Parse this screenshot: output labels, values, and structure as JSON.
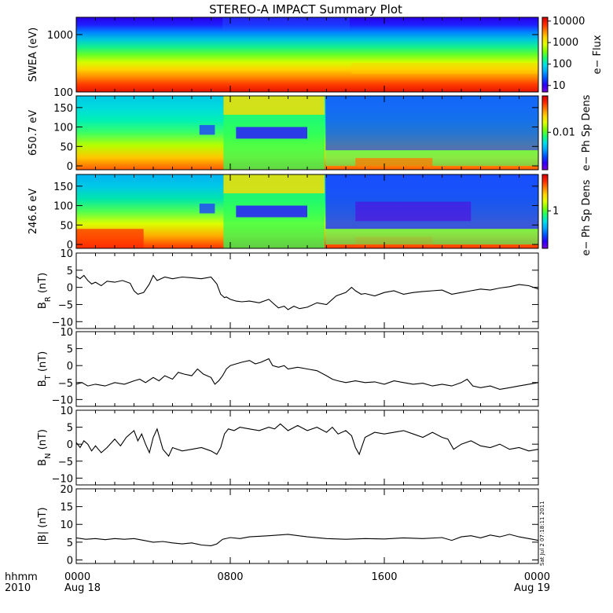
{
  "title": "STEREO-A IMPACT Summary Plot",
  "footer": {
    "row1": "hhmm",
    "row2": "2010",
    "ticks": [
      {
        "time": "0000",
        "date": "Aug 18"
      },
      {
        "time": "0800",
        "date": ""
      },
      {
        "time": "1600",
        "date": ""
      },
      {
        "time": "0000",
        "date": "Aug 19"
      }
    ]
  },
  "stamp": "Sat Jul  2 07:18:11 2011",
  "colors": {
    "line": "#000000",
    "spectrogram_low": "#1a00ff",
    "spectrogram_high": "#e31a00"
  },
  "chart_data": [
    {
      "type": "heatmap",
      "ylabel": "SWEA (eV)",
      "yscale": "log",
      "ylim": [
        100,
        2000
      ],
      "yticks": [
        {
          "v": 100,
          "label": "100"
        },
        {
          "v": 1000,
          "label": "1000"
        }
      ],
      "colorbar": {
        "label": "e− Flux",
        "scale": "log",
        "range": [
          5,
          15000
        ],
        "ticks": [
          {
            "v": 10,
            "label": "10"
          },
          {
            "v": 100,
            "label": "100"
          },
          {
            "v": 1000,
            "label": "1000"
          },
          {
            "v": 10000,
            "label": "10000"
          }
        ]
      }
    },
    {
      "type": "heatmap",
      "ylabel": "650.7  eV",
      "ylim": [
        -10,
        180
      ],
      "yticks": [
        {
          "v": 0,
          "label": "0"
        },
        {
          "v": 50,
          "label": "50"
        },
        {
          "v": 100,
          "label": "100"
        },
        {
          "v": 150,
          "label": "150"
        }
      ],
      "colorbar": {
        "label": "e− Ph Sp Dens",
        "scale": "log",
        "ticks": [
          {
            "v": 0.01,
            "label": "0.01"
          }
        ]
      }
    },
    {
      "type": "heatmap",
      "ylabel": "246.6  eV",
      "ylim": [
        -10,
        180
      ],
      "yticks": [
        {
          "v": 0,
          "label": "0"
        },
        {
          "v": 50,
          "label": "50"
        },
        {
          "v": 100,
          "label": "100"
        },
        {
          "v": 150,
          "label": "150"
        }
      ],
      "colorbar": {
        "label": "e− Ph Sp Dens",
        "scale": "log",
        "ticks": [
          {
            "v": 1,
            "label": "1"
          }
        ]
      }
    },
    {
      "type": "line",
      "ylabel": "B",
      "ysub": "R",
      "yunit": "(nT)",
      "ylim": [
        -12,
        10
      ],
      "yticks": [
        {
          "v": -10,
          "label": "−10"
        },
        {
          "v": -5,
          "label": "−5"
        },
        {
          "v": 0,
          "label": "0"
        },
        {
          "v": 5,
          "label": "5"
        },
        {
          "v": 10,
          "label": "10"
        }
      ],
      "x_hours": [
        0,
        0.2,
        0.4,
        0.6,
        0.8,
        1.0,
        1.3,
        1.6,
        2.0,
        2.4,
        2.8,
        3.0,
        3.2,
        3.5,
        3.8,
        4.0,
        4.2,
        4.4,
        4.6,
        5.0,
        5.5,
        6.0,
        6.5,
        7.0,
        7.3,
        7.5,
        7.6,
        7.7,
        7.8,
        8.0,
        8.3,
        8.6,
        9.0,
        9.5,
        10.0,
        10.3,
        10.5,
        10.8,
        11.0,
        11.3,
        11.6,
        12.0,
        12.5,
        13.0,
        13.5,
        14.0,
        14.3,
        14.5,
        14.8,
        15.0,
        15.5,
        16.0,
        16.5,
        17.0,
        17.5,
        18.0,
        18.5,
        19.0,
        19.5,
        20.0,
        20.5,
        21.0,
        21.5,
        22.0,
        22.5,
        23.0,
        23.5,
        24.0
      ],
      "y": [
        3.2,
        2.5,
        3.5,
        2.0,
        1.0,
        1.5,
        0.5,
        1.8,
        1.5,
        2.0,
        1.2,
        -1.0,
        -2.0,
        -1.5,
        1.0,
        3.5,
        2.0,
        2.5,
        3.0,
        2.5,
        3.0,
        2.8,
        2.5,
        3.0,
        1.0,
        -2.0,
        -2.5,
        -3.0,
        -2.8,
        -3.5,
        -4.0,
        -4.2,
        -4.0,
        -4.5,
        -3.5,
        -5.0,
        -6.0,
        -5.5,
        -6.5,
        -5.5,
        -6.2,
        -5.8,
        -4.5,
        -5.0,
        -2.5,
        -1.5,
        0.0,
        -1.0,
        -2.0,
        -1.8,
        -2.5,
        -1.5,
        -1.0,
        -2.0,
        -1.5,
        -1.2,
        -1.0,
        -0.8,
        -2.0,
        -1.5,
        -1.0,
        -0.5,
        -0.8,
        -0.2,
        0.2,
        0.8,
        0.5,
        -0.5
      ]
    },
    {
      "type": "line",
      "ylabel": "B",
      "ysub": "T",
      "yunit": "(nT)",
      "ylim": [
        -12,
        10
      ],
      "yticks": [
        {
          "v": -10,
          "label": "−10"
        },
        {
          "v": -5,
          "label": "−5"
        },
        {
          "v": 0,
          "label": "0"
        },
        {
          "v": 5,
          "label": "5"
        },
        {
          "v": 10,
          "label": "10"
        }
      ],
      "x_hours": [
        0,
        0.3,
        0.6,
        1.0,
        1.5,
        2.0,
        2.5,
        3.0,
        3.3,
        3.6,
        4.0,
        4.3,
        4.6,
        5.0,
        5.3,
        5.6,
        6.0,
        6.3,
        6.6,
        7.0,
        7.2,
        7.4,
        7.6,
        7.8,
        8.0,
        8.3,
        8.6,
        9.0,
        9.3,
        9.6,
        10.0,
        10.2,
        10.5,
        10.8,
        11.0,
        11.5,
        12.0,
        12.5,
        13.0,
        13.3,
        13.6,
        14.0,
        14.5,
        15.0,
        15.5,
        16.0,
        16.5,
        17.0,
        17.5,
        18.0,
        18.5,
        19.0,
        19.5,
        20.0,
        20.3,
        20.6,
        21.0,
        21.5,
        22.0,
        22.5,
        23.0,
        23.5,
        24.0
      ],
      "y": [
        -5.5,
        -5.0,
        -6.0,
        -5.5,
        -6.0,
        -5.0,
        -5.5,
        -4.5,
        -4.0,
        -5.0,
        -3.5,
        -4.5,
        -3.0,
        -4.0,
        -2.0,
        -2.5,
        -3.0,
        -1.0,
        -2.5,
        -3.5,
        -5.5,
        -4.5,
        -3.0,
        -1.0,
        0.0,
        0.5,
        1.0,
        1.5,
        0.5,
        1.0,
        2.0,
        0.0,
        -0.5,
        0.0,
        -1.0,
        -0.5,
        -1.0,
        -1.5,
        -3.0,
        -4.0,
        -4.5,
        -5.0,
        -4.5,
        -5.0,
        -4.8,
        -5.5,
        -4.5,
        -5.0,
        -5.5,
        -5.2,
        -6.0,
        -5.5,
        -6.0,
        -5.0,
        -4.0,
        -6.0,
        -6.5,
        -6.0,
        -7.0,
        -6.5,
        -6.0,
        -5.5,
        -5.0
      ]
    },
    {
      "type": "line",
      "ylabel": "B",
      "ysub": "N",
      "yunit": "(nT)",
      "ylim": [
        -12,
        10
      ],
      "yticks": [
        {
          "v": -10,
          "label": "−10"
        },
        {
          "v": -5,
          "label": "−5"
        },
        {
          "v": 0,
          "label": "0"
        },
        {
          "v": 5,
          "label": "5"
        },
        {
          "v": 10,
          "label": "10"
        }
      ],
      "x_hours": [
        0,
        0.2,
        0.4,
        0.6,
        0.8,
        1.0,
        1.3,
        1.6,
        2.0,
        2.3,
        2.6,
        3.0,
        3.2,
        3.4,
        3.6,
        3.8,
        4.0,
        4.2,
        4.5,
        4.8,
        5.0,
        5.5,
        6.0,
        6.5,
        7.0,
        7.3,
        7.5,
        7.7,
        7.9,
        8.2,
        8.5,
        9.0,
        9.5,
        10.0,
        10.3,
        10.6,
        11.0,
        11.5,
        12.0,
        12.5,
        13.0,
        13.3,
        13.6,
        14.0,
        14.3,
        14.5,
        14.7,
        15.0,
        15.5,
        16.0,
        16.5,
        17.0,
        17.5,
        18.0,
        18.5,
        19.0,
        19.3,
        19.6,
        20.0,
        20.5,
        21.0,
        21.5,
        22.0,
        22.5,
        23.0,
        23.5,
        24.0
      ],
      "y": [
        0.5,
        -1.0,
        1.0,
        0.0,
        -2.0,
        -0.5,
        -2.5,
        -1.0,
        1.5,
        -0.5,
        2.0,
        4.0,
        1.0,
        3.0,
        0.0,
        -2.5,
        2.0,
        4.5,
        -1.5,
        -3.5,
        -1.0,
        -2.0,
        -1.5,
        -1.0,
        -2.0,
        -3.0,
        -1.0,
        3.0,
        4.5,
        4.0,
        5.0,
        4.5,
        4.0,
        5.0,
        4.5,
        6.0,
        4.0,
        5.5,
        4.0,
        5.0,
        3.5,
        5.0,
        3.0,
        4.0,
        2.5,
        -1.0,
        -3.0,
        2.0,
        3.5,
        3.0,
        3.5,
        4.0,
        3.0,
        2.0,
        3.5,
        2.0,
        1.5,
        -1.5,
        0.0,
        1.0,
        -0.5,
        -1.0,
        0.0,
        -1.5,
        -1.0,
        -2.0,
        -1.5
      ]
    },
    {
      "type": "line",
      "ylabel": "|B|",
      "ysub": "",
      "yunit": "(nT)",
      "ylim": [
        -1,
        20
      ],
      "yticks": [
        {
          "v": 0,
          "label": "0"
        },
        {
          "v": 5,
          "label": "5"
        },
        {
          "v": 10,
          "label": "10"
        },
        {
          "v": 15,
          "label": "15"
        },
        {
          "v": 20,
          "label": "20"
        }
      ],
      "x_hours": [
        0,
        0.5,
        1.0,
        1.5,
        2.0,
        2.5,
        3.0,
        3.5,
        4.0,
        4.5,
        5.0,
        5.5,
        6.0,
        6.5,
        7.0,
        7.3,
        7.6,
        8.0,
        8.5,
        9.0,
        10.0,
        11.0,
        12.0,
        13.0,
        14.0,
        15.0,
        16.0,
        17.0,
        18.0,
        19.0,
        19.5,
        20.0,
        20.5,
        21.0,
        21.5,
        22.0,
        22.5,
        23.0,
        23.5,
        24.0
      ],
      "y": [
        6.2,
        5.8,
        6.0,
        5.7,
        6.0,
        5.8,
        6.0,
        5.5,
        5.0,
        5.2,
        4.8,
        4.5,
        4.8,
        4.2,
        4.0,
        4.5,
        5.8,
        6.3,
        6.0,
        6.5,
        6.8,
        7.2,
        6.5,
        6.0,
        5.8,
        6.0,
        5.9,
        6.2,
        6.0,
        6.3,
        5.5,
        6.5,
        6.8,
        6.2,
        7.0,
        6.5,
        7.2,
        6.5,
        6.0,
        5.5
      ]
    }
  ]
}
